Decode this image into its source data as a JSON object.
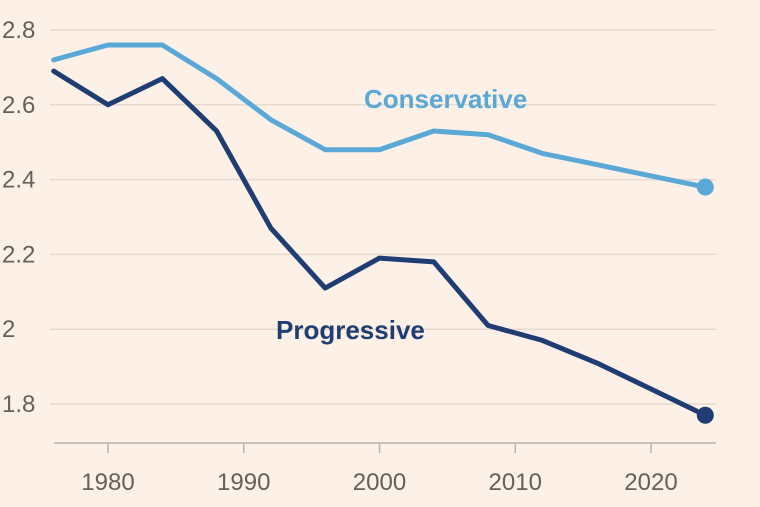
{
  "chart_data": {
    "type": "line",
    "title": "",
    "xlabel": "",
    "ylabel": "",
    "xlim": [
      1976,
      2024
    ],
    "ylim": [
      1.7,
      2.85
    ],
    "x_ticks": [
      1980,
      1990,
      2000,
      2010,
      2020
    ],
    "y_ticks": [
      {
        "value": 1.8,
        "label": "1.8"
      },
      {
        "value": 2.0,
        "label": "2"
      },
      {
        "value": 2.2,
        "label": "2.2"
      },
      {
        "value": 2.4,
        "label": "2.4"
      },
      {
        "value": 2.6,
        "label": "2.6"
      },
      {
        "value": 2.8,
        "label": "2.8"
      }
    ],
    "grid": "horizontal",
    "background_color": "#fdf1e7",
    "grid_color": "#e6dad0",
    "series": [
      {
        "name": "Conservative",
        "color": "#5aa8d6",
        "x": [
          1976,
          1980,
          1984,
          1988,
          1992,
          1996,
          2000,
          2004,
          2008,
          2012,
          2016,
          2020,
          2024
        ],
        "y": [
          2.72,
          2.76,
          2.76,
          2.67,
          2.56,
          2.48,
          2.48,
          2.53,
          2.52,
          2.47,
          2.44,
          2.41,
          2.38
        ]
      },
      {
        "name": "Progressive",
        "color": "#1f3d72",
        "x": [
          1976,
          1980,
          1984,
          1988,
          1992,
          1996,
          2000,
          2004,
          2008,
          2012,
          2016,
          2020,
          2024
        ],
        "y": [
          2.69,
          2.6,
          2.67,
          2.53,
          2.27,
          2.11,
          2.19,
          2.18,
          2.01,
          1.97,
          1.91,
          1.84,
          1.77
        ]
      }
    ]
  }
}
